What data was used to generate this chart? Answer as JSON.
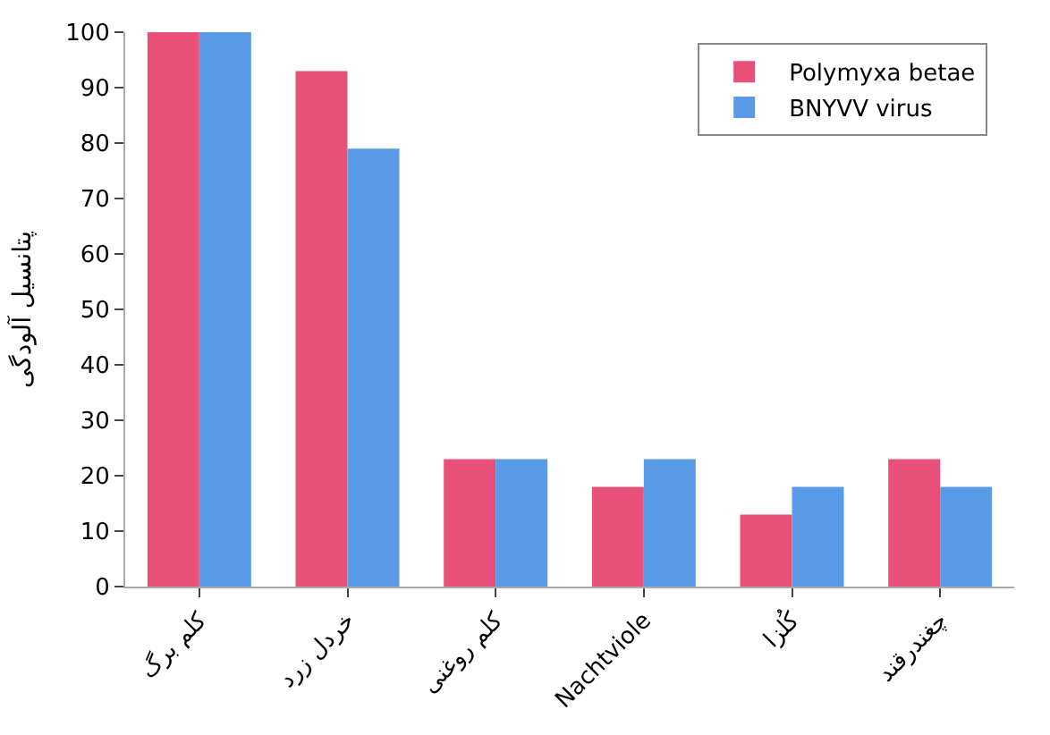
{
  "chart_data": {
    "type": "bar",
    "ylabel": "پتانسیل آلودگی",
    "categories": [
      "کلم برگ",
      "خردل زرد",
      "کلم روغنی",
      "Nachtviole",
      "کُلزا",
      "چغندرقند"
    ],
    "series": [
      {
        "name": "Polymyxa betae",
        "color": "#e8507a",
        "values": [
          100,
          93,
          23,
          18,
          13,
          23
        ]
      },
      {
        "name": "BNYVV virus",
        "color": "#5a9be8",
        "values": [
          100,
          79,
          23,
          23,
          18,
          18
        ]
      }
    ],
    "ylim": [
      0,
      100
    ],
    "yticks": [
      0,
      10,
      20,
      30,
      40,
      50,
      60,
      70,
      80,
      90,
      100
    ],
    "legend": "top right"
  }
}
